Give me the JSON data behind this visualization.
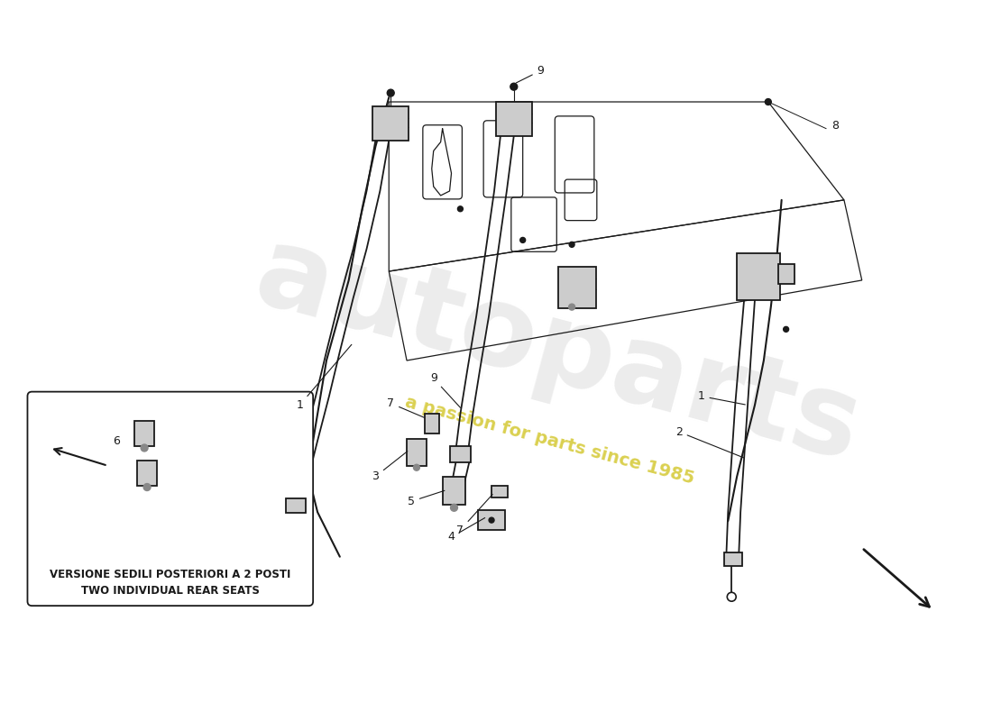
{
  "background_color": "#ffffff",
  "line_color": "#1a1a1a",
  "label_color": "#111111",
  "box_text_line1": "VERSIONE SEDILI POSTERIORI A 2 POSTI",
  "box_text_line2": "TWO INDIVIDUAL REAR SEATS",
  "watermark_text": "autoparts",
  "watermark_subtext": "a passion for parts since 1985",
  "figsize": [
    11.0,
    8.0
  ],
  "dpi": 100
}
